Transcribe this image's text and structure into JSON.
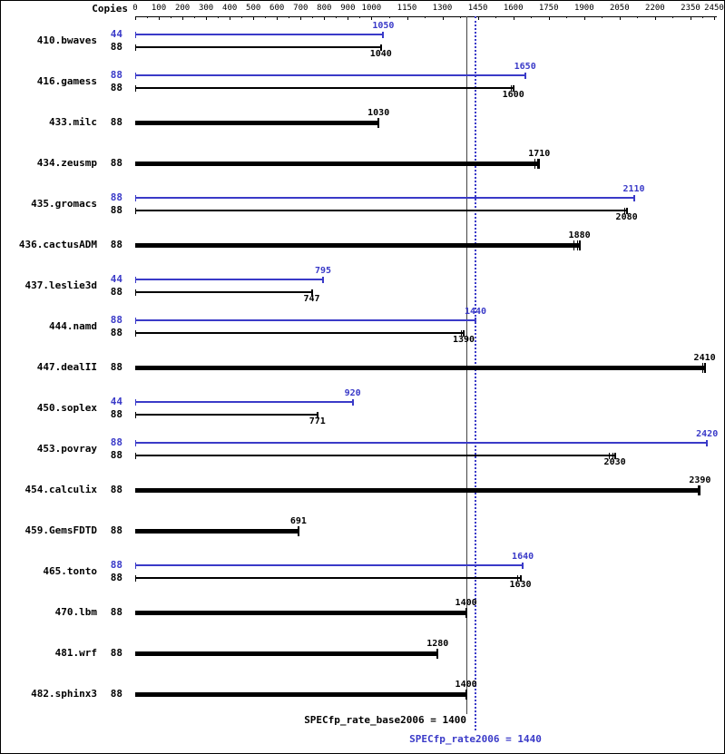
{
  "labels": {
    "copies_header": "Copies"
  },
  "colors": {
    "peak_blue": "#3a3ac8",
    "base_black": "#000000",
    "axis": "#000000",
    "base_ref_line": "#444444"
  },
  "chart_data": {
    "type": "bar",
    "orientation": "horizontal",
    "title": "",
    "xlabel": "",
    "ylabel": "",
    "x_range": [
      0,
      2450
    ],
    "x_ticks": [
      0,
      100,
      200,
      300,
      400,
      500,
      600,
      700,
      800,
      900,
      1000,
      1150,
      1300,
      1450,
      1600,
      1750,
      1900,
      2050,
      2200,
      2350,
      2450
    ],
    "grid": "off",
    "legend": "none",
    "reference_lines": [
      {
        "value": 1400,
        "style": "solid",
        "color": "#444444",
        "label": "SPECfp_rate_base2006 = 1400"
      },
      {
        "value": 1440,
        "style": "dotted",
        "color": "#3a3ac8",
        "label": "SPECfp_rate2006 = 1440"
      }
    ],
    "benchmarks": [
      {
        "name": "410.bwaves",
        "bars": [
          {
            "copies": 44,
            "value": 1050,
            "kind": "peak"
          },
          {
            "copies": 88,
            "value": 1040,
            "kind": "base"
          }
        ]
      },
      {
        "name": "416.gamess",
        "bars": [
          {
            "copies": 88,
            "value": 1650,
            "kind": "peak"
          },
          {
            "copies": 88,
            "value": 1600,
            "kind": "base",
            "run_marks": [
              1590
            ]
          }
        ]
      },
      {
        "name": "433.milc",
        "bars": [
          {
            "copies": 88,
            "value": 1030,
            "kind": "single"
          }
        ]
      },
      {
        "name": "434.zeusmp",
        "bars": [
          {
            "copies": 88,
            "value": 1710,
            "kind": "single",
            "run_marks": [
              1690,
              1700
            ]
          }
        ]
      },
      {
        "name": "435.gromacs",
        "bars": [
          {
            "copies": 88,
            "value": 2110,
            "kind": "peak"
          },
          {
            "copies": 88,
            "value": 2080,
            "kind": "base",
            "run_marks": [
              2070
            ]
          }
        ]
      },
      {
        "name": "436.cactusADM",
        "bars": [
          {
            "copies": 88,
            "value": 1880,
            "kind": "single",
            "run_marks": [
              1855,
              1870
            ]
          }
        ]
      },
      {
        "name": "437.leslie3d",
        "bars": [
          {
            "copies": 44,
            "value": 795,
            "kind": "peak"
          },
          {
            "copies": 88,
            "value": 747,
            "kind": "base"
          }
        ]
      },
      {
        "name": "444.namd",
        "bars": [
          {
            "copies": 88,
            "value": 1440,
            "kind": "peak"
          },
          {
            "copies": 88,
            "value": 1390,
            "kind": "base",
            "run_marks": [
              1380
            ]
          }
        ]
      },
      {
        "name": "447.dealII",
        "bars": [
          {
            "copies": 88,
            "value": 2410,
            "kind": "single",
            "run_marks": [
              2400
            ]
          }
        ]
      },
      {
        "name": "450.soplex",
        "bars": [
          {
            "copies": 44,
            "value": 920,
            "kind": "peak"
          },
          {
            "copies": 88,
            "value": 771,
            "kind": "base"
          }
        ]
      },
      {
        "name": "453.povray",
        "bars": [
          {
            "copies": 88,
            "value": 2420,
            "kind": "peak"
          },
          {
            "copies": 88,
            "value": 2030,
            "kind": "base",
            "run_marks": [
              2005,
              2018
            ]
          }
        ]
      },
      {
        "name": "454.calculix",
        "bars": [
          {
            "copies": 88,
            "value": 2390,
            "kind": "single",
            "run_marks": [
              2380
            ]
          }
        ]
      },
      {
        "name": "459.GemsFDTD",
        "bars": [
          {
            "copies": 88,
            "value": 691,
            "kind": "single"
          }
        ]
      },
      {
        "name": "465.tonto",
        "bars": [
          {
            "copies": 88,
            "value": 1640,
            "kind": "peak"
          },
          {
            "copies": 88,
            "value": 1630,
            "kind": "base",
            "run_marks": [
              1618
            ]
          }
        ]
      },
      {
        "name": "470.lbm",
        "bars": [
          {
            "copies": 88,
            "value": 1400,
            "kind": "single"
          }
        ]
      },
      {
        "name": "481.wrf",
        "bars": [
          {
            "copies": 88,
            "value": 1280,
            "kind": "single"
          }
        ]
      },
      {
        "name": "482.sphinx3",
        "bars": [
          {
            "copies": 88,
            "value": 1400,
            "kind": "single"
          }
        ]
      }
    ]
  }
}
